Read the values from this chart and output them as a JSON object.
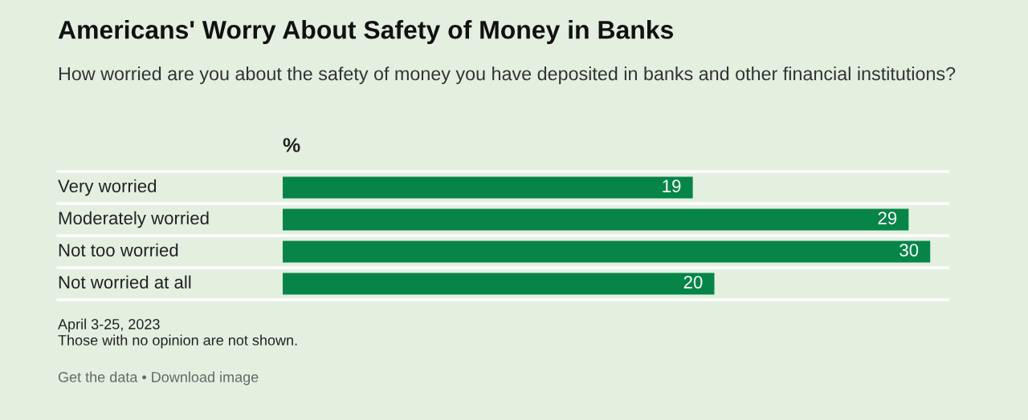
{
  "chart_data": {
    "type": "bar",
    "orientation": "horizontal",
    "title": "Americans' Worry About Safety of Money in Banks",
    "subtitle": "How worried are you about the safety of money you have deposited in banks and other financial institutions?",
    "xlabel": "%",
    "categories": [
      "Very worried",
      "Moderately worried",
      "Not too worried",
      "Not worried at all"
    ],
    "values": [
      19,
      29,
      30,
      20
    ],
    "color": "#078549",
    "data_labels": true,
    "annotations": [
      "April 3-25, 2023",
      "Those with no opinion are not shown.",
      "Get the data • Download image"
    ]
  }
}
